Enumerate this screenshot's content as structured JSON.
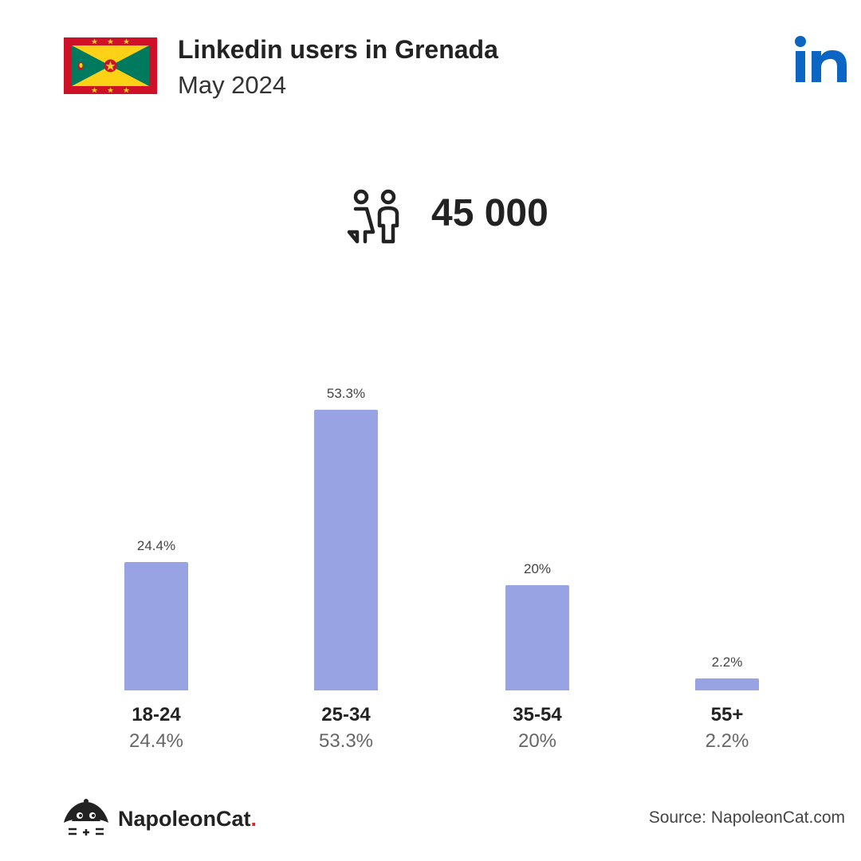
{
  "header": {
    "title": "Linkedin users in Grenada",
    "subtitle": "May 2024",
    "flag_icon": "grenada-flag-icon",
    "brand_icon": "linkedin-logo-icon"
  },
  "total": {
    "icon": "users-icon",
    "value": "45 000"
  },
  "chart_data": {
    "type": "bar",
    "categories": [
      "18-24",
      "25-34",
      "35-54",
      "55+"
    ],
    "values": [
      24.4,
      53.3,
      20,
      2.2
    ],
    "value_labels": [
      "24.4%",
      "53.3%",
      "20%",
      "2.2%"
    ],
    "title": "",
    "xlabel": "",
    "ylabel": "",
    "ylim": [
      0,
      53.3
    ],
    "grid": false,
    "bar_color": "#97a3e2"
  },
  "footer": {
    "brand": "NapoleonCat",
    "brand_dot": ".",
    "source": "Source: NapoleonCat.com",
    "logo_icon": "napoleoncat-logo-icon"
  }
}
